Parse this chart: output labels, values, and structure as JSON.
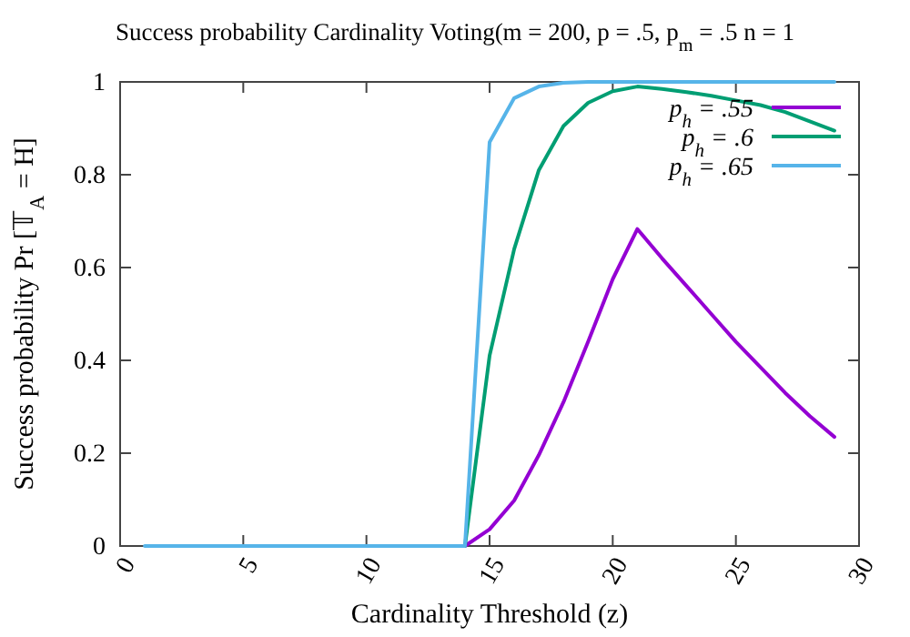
{
  "chart_data": {
    "type": "line",
    "title": "Success probability Cardinality Voting(m = 200, p = .5, p$_{m}$ = .5 n = 1",
    "xlabel": "Cardinality Threshold (z)",
    "ylabel": "Success probability Pr [𝕋$_{A}$ = H]",
    "x": [
      1,
      2,
      3,
      4,
      5,
      6,
      7,
      8,
      9,
      10,
      11,
      12,
      13,
      14,
      15,
      16,
      17,
      18,
      19,
      20,
      21,
      22,
      23,
      24,
      25,
      26,
      27,
      28,
      29
    ],
    "series": [
      {
        "name": "p$_{h}$ = .55",
        "color": "#9400d3",
        "values": [
          null,
          null,
          null,
          null,
          null,
          null,
          null,
          null,
          null,
          null,
          null,
          null,
          0,
          0,
          0.036,
          0.098,
          0.196,
          0.31,
          0.44,
          0.575,
          0.683,
          0.62,
          0.56,
          0.5,
          0.44,
          0.385,
          0.33,
          0.28,
          0.235
        ]
      },
      {
        "name": "p$_{h}$ = .6",
        "color": "#009e73",
        "values": [
          null,
          null,
          null,
          null,
          null,
          null,
          null,
          null,
          null,
          null,
          null,
          null,
          0,
          0,
          0.41,
          0.64,
          0.81,
          0.905,
          0.955,
          0.98,
          0.99,
          0.985,
          0.978,
          0.97,
          0.96,
          0.95,
          0.935,
          0.915,
          0.895
        ]
      },
      {
        "name": "p$_{h}$ = .65",
        "color": "#56b4e9",
        "values": [
          0,
          0,
          0,
          0,
          0,
          0,
          0,
          0,
          0,
          0,
          0,
          0,
          0,
          0,
          0.87,
          0.965,
          0.99,
          0.998,
          1,
          1,
          1,
          1,
          1,
          1,
          1,
          1,
          1,
          1,
          1
        ]
      }
    ],
    "xlim": [
      0,
      30
    ],
    "xticks": [
      0,
      5,
      10,
      15,
      20,
      25,
      30
    ],
    "ylim": [
      0,
      1
    ],
    "yticks": [
      0,
      0.2,
      0.4,
      0.6,
      0.8,
      1
    ],
    "grid": false,
    "legend": "top right",
    "marker": "none",
    "line_style": "solid"
  }
}
